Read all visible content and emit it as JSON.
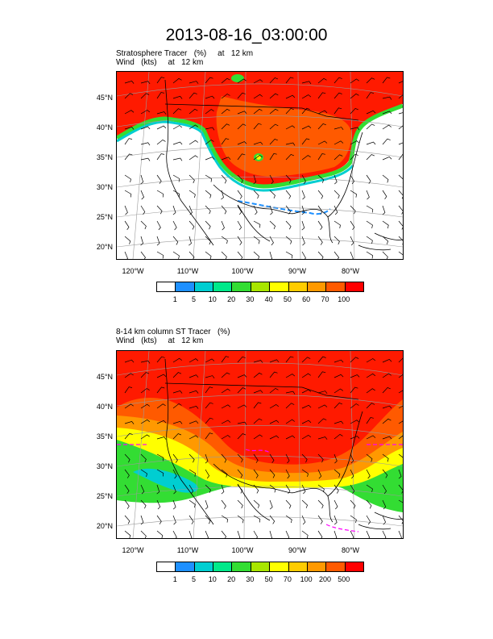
{
  "title": "2013-08-16_03:00:00",
  "panel1": {
    "title_line1": "Stratosphere Tracer   (%)     at   12 km",
    "title_line2": "Wind   (kts)     at   12 km",
    "lat_labels": [
      "45°N",
      "40°N",
      "35°N",
      "30°N",
      "25°N",
      "20°N"
    ],
    "lon_labels": [
      "120°W",
      "110°W",
      "100°W",
      "90°W",
      "80°W"
    ],
    "colorbar_labels": [
      "1",
      "5",
      "10",
      "20",
      "30",
      "40",
      "50",
      "60",
      "70",
      "100"
    ],
    "colorbar_colors": [
      "#ffffff",
      "#1e90ff",
      "#00ced1",
      "#00e98a",
      "#33dd33",
      "#a8e600",
      "#ffff00",
      "#ffcc00",
      "#ff9900",
      "#ff5a00",
      "#ff0000"
    ]
  },
  "panel2": {
    "title_line1": "8-14 km column ST Tracer   (%)",
    "title_line2": "Wind   (kts)     at   12 km",
    "lat_labels": [
      "45°N",
      "40°N",
      "35°N",
      "30°N",
      "25°N",
      "20°N"
    ],
    "lon_labels": [
      "120°W",
      "110°W",
      "100°W",
      "90°W",
      "80°W"
    ],
    "colorbar_labels": [
      "1",
      "5",
      "10",
      "20",
      "30",
      "50",
      "70",
      "100",
      "200",
      "500"
    ],
    "colorbar_colors": [
      "#ffffff",
      "#1e90ff",
      "#00ced1",
      "#00e98a",
      "#33dd33",
      "#a8e600",
      "#ffff00",
      "#ffcc00",
      "#ff9900",
      "#ff5a00",
      "#ff0000"
    ]
  }
}
